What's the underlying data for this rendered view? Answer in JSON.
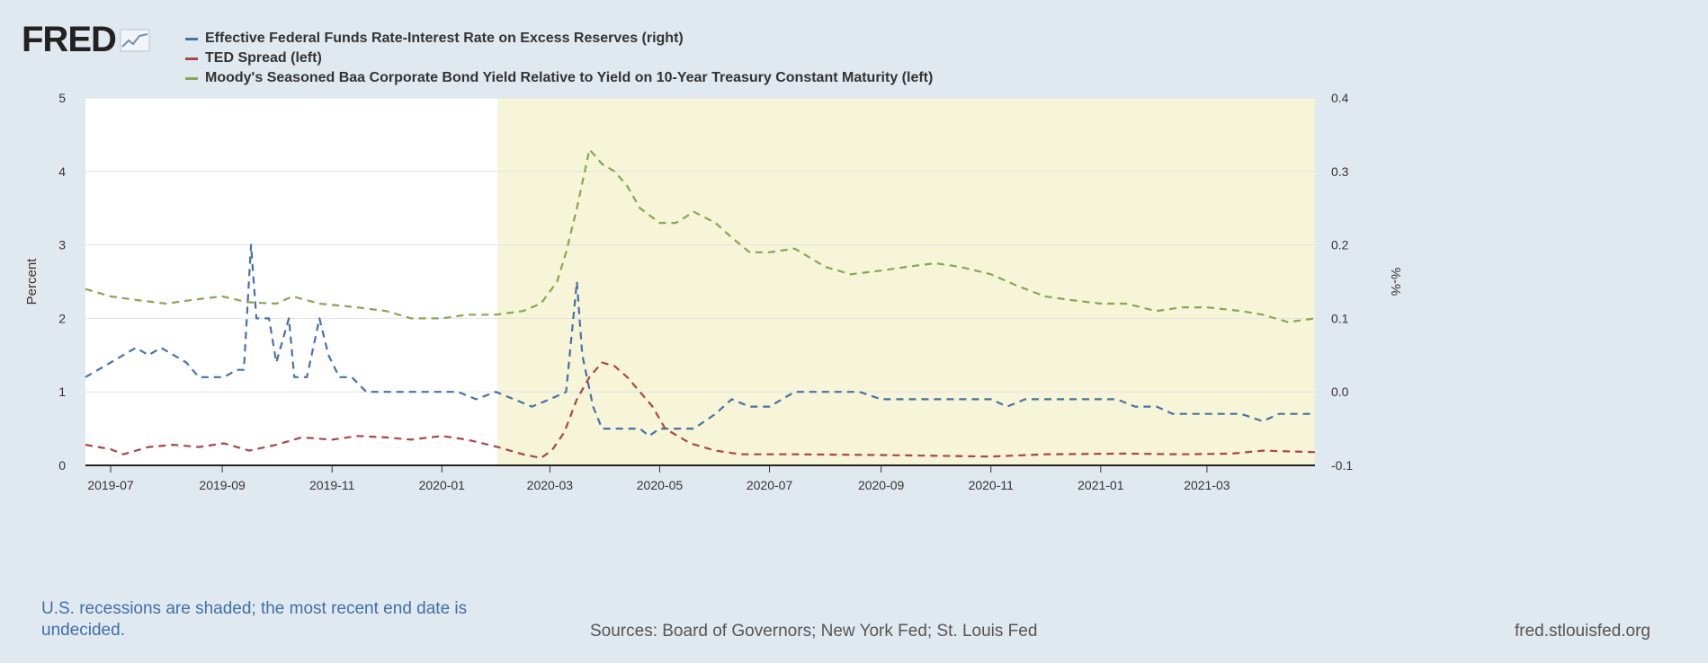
{
  "header": {
    "logo_text": "FRED",
    "logo_icon": "line-graph-icon"
  },
  "colors": {
    "background": "#e1e9f0",
    "recession_shade": "#f6f5d8",
    "plot_bg": "#ffffff",
    "grid": "#e2e2e2"
  },
  "footer": {
    "recession_note": "U.S. recessions are shaded; the most recent end date is undecided.",
    "sources": "Sources: Board of Governors; New York Fed; St. Louis Fed",
    "site": "fred.stlouisfed.org"
  },
  "chart_data": {
    "type": "line",
    "title": "",
    "grid": "horizontal",
    "legend_position": "top-left",
    "left_axis": {
      "label": "Percent",
      "range": [
        0,
        5
      ],
      "ticks": [
        "0",
        "1",
        "2",
        "3",
        "4",
        "5"
      ]
    },
    "right_axis": {
      "label": "%-%",
      "range": [
        -0.1,
        0.4
      ],
      "ticks": [
        "-0.1",
        "0.0",
        "0.1",
        "0.2",
        "0.3",
        "0.4"
      ]
    },
    "x_range": [
      "2019-06-17",
      "2021-04-30"
    ],
    "x_ticks": [
      "2019-07",
      "2019-09",
      "2019-11",
      "2020-01",
      "2020-03",
      "2020-05",
      "2020-07",
      "2020-09",
      "2020-11",
      "2021-01",
      "2021-03"
    ],
    "recession": {
      "start": "2020-02-01",
      "end": "2021-04-30"
    },
    "series": [
      {
        "name": "Effective Federal Funds Rate-Interest Rate on Excess Reserves (right)",
        "axis": "right",
        "color": "#4572a7",
        "dash": "8,6",
        "points": [
          [
            "2019-06-17",
            0.02
          ],
          [
            "2019-06-24",
            0.03
          ],
          [
            "2019-07-01",
            0.04
          ],
          [
            "2019-07-08",
            0.05
          ],
          [
            "2019-07-15",
            0.06
          ],
          [
            "2019-07-22",
            0.05
          ],
          [
            "2019-07-29",
            0.06
          ],
          [
            "2019-08-05",
            0.05
          ],
          [
            "2019-08-12",
            0.04
          ],
          [
            "2019-08-19",
            0.02
          ],
          [
            "2019-08-26",
            0.02
          ],
          [
            "2019-09-02",
            0.02
          ],
          [
            "2019-09-09",
            0.03
          ],
          [
            "2019-09-13",
            0.03
          ],
          [
            "2019-09-17",
            0.2
          ],
          [
            "2019-09-20",
            0.1
          ],
          [
            "2019-09-27",
            0.1
          ],
          [
            "2019-10-01",
            0.04
          ],
          [
            "2019-10-08",
            0.1
          ],
          [
            "2019-10-11",
            0.02
          ],
          [
            "2019-10-18",
            0.02
          ],
          [
            "2019-10-25",
            0.1
          ],
          [
            "2019-10-30",
            0.05
          ],
          [
            "2019-11-05",
            0.02
          ],
          [
            "2019-11-12",
            0.02
          ],
          [
            "2019-11-20",
            0.0
          ],
          [
            "2019-12-15",
            0.0
          ],
          [
            "2020-01-10",
            0.0
          ],
          [
            "2020-01-20",
            -0.01
          ],
          [
            "2020-01-31",
            0.0
          ],
          [
            "2020-02-10",
            -0.01
          ],
          [
            "2020-02-20",
            -0.02
          ],
          [
            "2020-03-01",
            -0.01
          ],
          [
            "2020-03-10",
            0.0
          ],
          [
            "2020-03-16",
            0.15
          ],
          [
            "2020-03-19",
            0.05
          ],
          [
            "2020-03-25",
            -0.02
          ],
          [
            "2020-03-30",
            -0.05
          ],
          [
            "2020-04-20",
            -0.05
          ],
          [
            "2020-04-25",
            -0.06
          ],
          [
            "2020-05-01",
            -0.05
          ],
          [
            "2020-05-20",
            -0.05
          ],
          [
            "2020-06-01",
            -0.03
          ],
          [
            "2020-06-10",
            -0.01
          ],
          [
            "2020-06-20",
            -0.02
          ],
          [
            "2020-07-01",
            -0.02
          ],
          [
            "2020-07-15",
            0.0
          ],
          [
            "2020-08-01",
            0.0
          ],
          [
            "2020-08-20",
            0.0
          ],
          [
            "2020-09-01",
            -0.01
          ],
          [
            "2020-10-01",
            -0.01
          ],
          [
            "2020-11-01",
            -0.01
          ],
          [
            "2020-11-10",
            -0.02
          ],
          [
            "2020-11-20",
            -0.01
          ],
          [
            "2020-12-15",
            -0.01
          ],
          [
            "2021-01-10",
            -0.01
          ],
          [
            "2021-01-20",
            -0.02
          ],
          [
            "2021-02-01",
            -0.02
          ],
          [
            "2021-02-10",
            -0.03
          ],
          [
            "2021-03-01",
            -0.03
          ],
          [
            "2021-03-20",
            -0.03
          ],
          [
            "2021-04-01",
            -0.04
          ],
          [
            "2021-04-10",
            -0.03
          ],
          [
            "2021-04-30",
            -0.03
          ]
        ]
      },
      {
        "name": "TED Spread (left)",
        "axis": "left",
        "color": "#aa4643",
        "dash": "8,6",
        "points": [
          [
            "2019-06-17",
            0.28
          ],
          [
            "2019-07-01",
            0.22
          ],
          [
            "2019-07-08",
            0.15
          ],
          [
            "2019-07-22",
            0.25
          ],
          [
            "2019-08-05",
            0.28
          ],
          [
            "2019-08-19",
            0.25
          ],
          [
            "2019-09-02",
            0.3
          ],
          [
            "2019-09-16",
            0.2
          ],
          [
            "2019-10-01",
            0.28
          ],
          [
            "2019-10-15",
            0.38
          ],
          [
            "2019-11-01",
            0.35
          ],
          [
            "2019-11-15",
            0.4
          ],
          [
            "2019-12-01",
            0.38
          ],
          [
            "2019-12-15",
            0.35
          ],
          [
            "2020-01-01",
            0.4
          ],
          [
            "2020-01-15",
            0.35
          ],
          [
            "2020-02-01",
            0.25
          ],
          [
            "2020-02-15",
            0.15
          ],
          [
            "2020-02-25",
            0.1
          ],
          [
            "2020-03-02",
            0.2
          ],
          [
            "2020-03-09",
            0.45
          ],
          [
            "2020-03-16",
            0.9
          ],
          [
            "2020-03-23",
            1.2
          ],
          [
            "2020-03-30",
            1.4
          ],
          [
            "2020-04-06",
            1.35
          ],
          [
            "2020-04-13",
            1.2
          ],
          [
            "2020-04-20",
            1.0
          ],
          [
            "2020-04-27",
            0.8
          ],
          [
            "2020-05-04",
            0.5
          ],
          [
            "2020-05-18",
            0.3
          ],
          [
            "2020-06-01",
            0.2
          ],
          [
            "2020-06-15",
            0.15
          ],
          [
            "2020-07-15",
            0.15
          ],
          [
            "2020-09-01",
            0.14
          ],
          [
            "2020-11-01",
            0.12
          ],
          [
            "2020-12-01",
            0.15
          ],
          [
            "2021-01-15",
            0.16
          ],
          [
            "2021-02-15",
            0.15
          ],
          [
            "2021-03-15",
            0.16
          ],
          [
            "2021-04-01",
            0.2
          ],
          [
            "2021-04-30",
            0.18
          ]
        ]
      },
      {
        "name": "Moody's Seasoned Baa Corporate Bond Yield Relative to Yield on 10-Year Treasury Constant Maturity (left)",
        "axis": "left",
        "color": "#89a54e",
        "dash": "8,6",
        "points": [
          [
            "2019-06-17",
            2.4
          ],
          [
            "2019-07-01",
            2.3
          ],
          [
            "2019-07-15",
            2.25
          ],
          [
            "2019-08-01",
            2.2
          ],
          [
            "2019-08-15",
            2.25
          ],
          [
            "2019-09-01",
            2.3
          ],
          [
            "2019-09-15",
            2.22
          ],
          [
            "2019-10-01",
            2.2
          ],
          [
            "2019-10-10",
            2.3
          ],
          [
            "2019-10-25",
            2.2
          ],
          [
            "2019-11-15",
            2.15
          ],
          [
            "2019-12-01",
            2.1
          ],
          [
            "2019-12-15",
            2.0
          ],
          [
            "2020-01-01",
            2.0
          ],
          [
            "2020-01-15",
            2.05
          ],
          [
            "2020-01-31",
            2.05
          ],
          [
            "2020-02-15",
            2.1
          ],
          [
            "2020-02-25",
            2.2
          ],
          [
            "2020-03-05",
            2.5
          ],
          [
            "2020-03-10",
            2.9
          ],
          [
            "2020-03-16",
            3.5
          ],
          [
            "2020-03-23",
            4.3
          ],
          [
            "2020-03-30",
            4.1
          ],
          [
            "2020-04-06",
            4.0
          ],
          [
            "2020-04-13",
            3.8
          ],
          [
            "2020-04-20",
            3.5
          ],
          [
            "2020-05-01",
            3.3
          ],
          [
            "2020-05-10",
            3.3
          ],
          [
            "2020-05-20",
            3.45
          ],
          [
            "2020-06-01",
            3.3
          ],
          [
            "2020-06-10",
            3.1
          ],
          [
            "2020-06-20",
            2.9
          ],
          [
            "2020-07-01",
            2.9
          ],
          [
            "2020-07-15",
            2.95
          ],
          [
            "2020-08-01",
            2.7
          ],
          [
            "2020-08-15",
            2.6
          ],
          [
            "2020-09-01",
            2.65
          ],
          [
            "2020-09-15",
            2.7
          ],
          [
            "2020-10-01",
            2.75
          ],
          [
            "2020-10-15",
            2.7
          ],
          [
            "2020-11-01",
            2.6
          ],
          [
            "2020-11-15",
            2.45
          ],
          [
            "2020-12-01",
            2.3
          ],
          [
            "2020-12-15",
            2.25
          ],
          [
            "2021-01-01",
            2.2
          ],
          [
            "2021-01-15",
            2.2
          ],
          [
            "2021-02-01",
            2.1
          ],
          [
            "2021-02-15",
            2.15
          ],
          [
            "2021-03-01",
            2.15
          ],
          [
            "2021-03-20",
            2.1
          ],
          [
            "2021-04-01",
            2.05
          ],
          [
            "2021-04-15",
            1.95
          ],
          [
            "2021-04-30",
            2.0
          ]
        ]
      }
    ]
  }
}
